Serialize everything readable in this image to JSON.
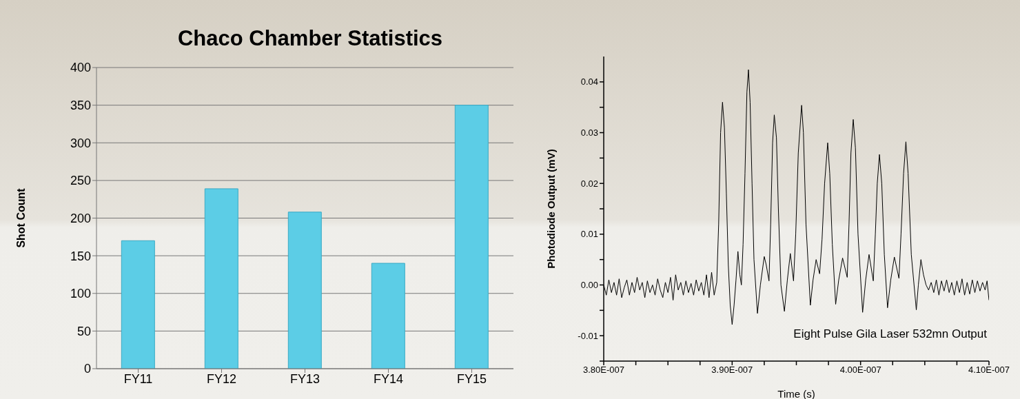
{
  "chart_data": [
    {
      "type": "bar",
      "title": "Chaco Chamber Statistics",
      "ylabel": "Shot Count",
      "categories": [
        "FY11",
        "FY12",
        "FY13",
        "FY14",
        "FY15"
      ],
      "values": [
        170,
        239,
        208,
        140,
        350
      ],
      "color": "#5ccde6",
      "ylim": [
        0,
        400
      ],
      "yticks": [
        0,
        50,
        100,
        150,
        200,
        250,
        300,
        350,
        400
      ],
      "grid": "y"
    },
    {
      "type": "line",
      "xlabel": "Time (s)",
      "ylabel": "Photodiode Output (mV)",
      "annotations": [
        "Eight Pulse Gila Laser 532mn Output"
      ],
      "line_style": "solid",
      "xlim": [
        3.8e-07,
        4.1e-07
      ],
      "ylim": [
        -0.015,
        0.045
      ],
      "xticks": [
        {
          "value": 3.8e-07,
          "label": "3.80E-007"
        },
        {
          "value": 3.825e-07,
          "label": null
        },
        {
          "value": 3.85e-07,
          "label": null
        },
        {
          "value": 3.875e-07,
          "label": null
        },
        {
          "value": 3.9e-07,
          "label": "3.90E-007"
        },
        {
          "value": 3.925e-07,
          "label": null
        },
        {
          "value": 3.95e-07,
          "label": null
        },
        {
          "value": 3.975e-07,
          "label": null
        },
        {
          "value": 4e-07,
          "label": "4.00E-007"
        },
        {
          "value": 4.025e-07,
          "label": null
        },
        {
          "value": 4.05e-07,
          "label": null
        },
        {
          "value": 4.075e-07,
          "label": null
        },
        {
          "value": 4.1e-07,
          "label": "4.10E-007"
        }
      ],
      "yticks": [
        {
          "value": -0.015,
          "label": null
        },
        -0.01,
        {
          "value": -0.005,
          "label": null
        },
        {
          "value": 0,
          "label": "0.00"
        },
        {
          "value": 0.005,
          "label": null
        },
        0.01,
        {
          "value": 0.015,
          "label": null
        },
        0.02,
        {
          "value": 0.025,
          "label": null
        },
        0.03,
        {
          "value": 0.035,
          "label": null
        },
        0.04
      ],
      "series": [
        {
          "color": "#000000",
          "x": [
            3.8e-07,
            3.802e-07,
            3.804e-07,
            3.806e-07,
            3.808e-07,
            3.81e-07,
            3.812e-07,
            3.814e-07,
            3.816e-07,
            3.818e-07,
            3.82e-07,
            3.822e-07,
            3.824e-07,
            3.826e-07,
            3.828e-07,
            3.83e-07,
            3.832e-07,
            3.834e-07,
            3.836e-07,
            3.838e-07,
            3.84e-07,
            3.842e-07,
            3.844e-07,
            3.846e-07,
            3.848e-07,
            3.85e-07,
            3.852e-07,
            3.854e-07,
            3.856e-07,
            3.858e-07,
            3.86e-07,
            3.862e-07,
            3.864e-07,
            3.866e-07,
            3.868e-07,
            3.87e-07,
            3.872e-07,
            3.874e-07,
            3.876e-07,
            3.878e-07,
            3.88e-07,
            3.882e-07,
            3.884e-07,
            3.886e-07,
            3.888e-07,
            3.8895e-07,
            3.891e-07,
            3.8925e-07,
            3.894e-07,
            3.8955e-07,
            3.897e-07,
            3.8985e-07,
            3.9e-07,
            3.9015e-07,
            3.903e-07,
            3.9045e-07,
            3.906e-07,
            3.9072e-07,
            3.9085e-07,
            3.91e-07,
            3.9115e-07,
            3.9127e-07,
            3.914e-07,
            3.9155e-07,
            3.917e-07,
            3.9197e-07,
            3.922e-07,
            3.925e-07,
            3.9265e-07,
            3.9287e-07,
            3.93e-07,
            3.9315e-07,
            3.9328e-07,
            3.9345e-07,
            3.936e-07,
            3.938e-07,
            3.9407e-07,
            3.943e-07,
            3.9453e-07,
            3.9478e-07,
            3.9495e-07,
            3.9515e-07,
            3.9541e-07,
            3.9555e-07,
            3.9575e-07,
            3.9609e-07,
            3.963e-07,
            3.9654e-07,
            3.9681e-07,
            3.97e-07,
            3.972e-07,
            3.9744e-07,
            3.976e-07,
            3.978e-07,
            3.9806e-07,
            3.983e-07,
            3.986e-07,
            3.9896e-07,
            3.991e-07,
            3.9925e-07,
            3.9943e-07,
            3.996e-07,
            3.998e-07,
            4.0016e-07,
            4.004e-07,
            4.0066e-07,
            4.0099e-07,
            4.0115e-07,
            4.013e-07,
            4.0147e-07,
            4.0165e-07,
            4.0185e-07,
            4.021e-07,
            4.0235e-07,
            4.0263e-07,
            4.0299e-07,
            4.0315e-07,
            4.0335e-07,
            4.0353e-07,
            4.037e-07,
            4.0395e-07,
            4.0434e-07,
            4.045e-07,
            4.047e-07,
            4.049e-07,
            4.051e-07,
            4.053e-07,
            4.055e-07,
            4.057e-07,
            4.059e-07,
            4.061e-07,
            4.063e-07,
            4.065e-07,
            4.067e-07,
            4.069e-07,
            4.071e-07,
            4.073e-07,
            4.075e-07,
            4.077e-07,
            4.079e-07,
            4.081e-07,
            4.083e-07,
            4.085e-07,
            4.087e-07,
            4.089e-07,
            4.091e-07,
            4.093e-07,
            4.095e-07,
            4.097e-07,
            4.0985e-07,
            4.1e-07
          ],
          "values": [
            0.0,
            -0.002,
            0.001,
            -0.0015,
            0.0005,
            -0.002,
            0.0012,
            -0.0025,
            -0.0005,
            0.001,
            -0.002,
            0.0005,
            -0.0015,
            0.0015,
            -0.001,
            0.0005,
            -0.0025,
            0.0008,
            -0.0015,
            0.0,
            -0.002,
            0.0012,
            -0.001,
            -0.0025,
            0.0005,
            -0.0015,
            0.0015,
            -0.003,
            0.002,
            -0.001,
            0.0005,
            -0.002,
            0.0008,
            -0.0015,
            0.0003,
            -0.002,
            0.001,
            -0.0012,
            0.0005,
            -0.002,
            0.002,
            -0.0025,
            0.0025,
            -0.002,
            0.0005,
            0.012,
            0.03,
            0.036,
            0.031,
            0.018,
            0.004,
            -0.004,
            -0.0078,
            -0.004,
            0.001,
            0.0066,
            0.002,
            0.0,
            0.008,
            0.022,
            0.038,
            0.0424,
            0.036,
            0.02,
            0.005,
            -0.0056,
            0.0,
            0.0056,
            0.004,
            0.0008,
            0.012,
            0.028,
            0.0335,
            0.029,
            0.015,
            0.0,
            -0.0052,
            0.001,
            0.0062,
            0.0008,
            0.01,
            0.026,
            0.0354,
            0.03,
            0.012,
            -0.004,
            0.001,
            0.005,
            0.0022,
            0.009,
            0.02,
            0.028,
            0.022,
            0.008,
            -0.0038,
            0.001,
            0.0053,
            0.0015,
            0.012,
            0.026,
            0.0326,
            0.027,
            0.01,
            -0.0054,
            0.001,
            0.006,
            0.0008,
            0.01,
            0.02,
            0.0257,
            0.02,
            0.006,
            -0.0045,
            0.001,
            0.0055,
            0.0013,
            0.01,
            0.022,
            0.0282,
            0.022,
            0.006,
            -0.0049,
            0.0,
            0.005,
            0.002,
            0.0,
            -0.001,
            0.0005,
            -0.0015,
            0.001,
            -0.002,
            0.0008,
            -0.0012,
            0.001,
            -0.0015,
            0.0005,
            -0.002,
            0.0008,
            -0.0015,
            0.0012,
            -0.002,
            0.0005,
            -0.0018,
            0.001,
            -0.0015,
            0.0008,
            -0.0012,
            0.0005,
            -0.001,
            0.0008,
            -0.003
          ]
        }
      ]
    }
  ]
}
